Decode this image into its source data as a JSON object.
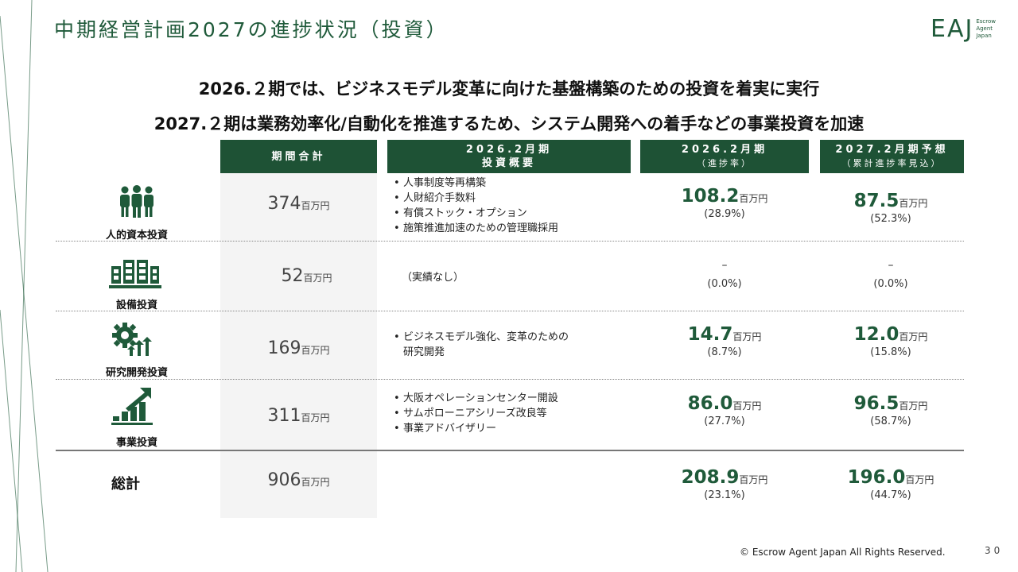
{
  "title": "中期経営計画2027の進捗状況（投資）",
  "logo": {
    "main": "EAJ",
    "sub1": "Escrow",
    "sub2": "Agent",
    "sub3": "Japan"
  },
  "headline1": "2026.２期では、ビジネスモデル変革に向けた基盤構築のための投資を着実に実行",
  "headline2": "2027.２期は業務効率化/自動化を推進するため、システム開発への着手などの事業投資を加速",
  "columns": {
    "total": "期間合計",
    "overview_1": "2026.2月期",
    "overview_2": "投資概要",
    "fy26_1": "2026.2月期",
    "fy26_2": "（進捗率）",
    "fy27_1": "2027.2月期予想",
    "fy27_2": "（累計進捗率見込）"
  },
  "unit": "百万円",
  "rows": [
    {
      "label": "人的資本投資",
      "icon": "people-icon",
      "total": "374",
      "bullets": [
        "人事制度等再構築",
        "人財紹介手数料",
        "有償ストック・オプション",
        "施策推進加速のための管理職採用"
      ],
      "fy26": "108.2",
      "fy26_pct": "(28.9%)",
      "fy27": "87.5",
      "fy27_pct": "(52.3%)"
    },
    {
      "label": "設備投資",
      "icon": "building-icon",
      "total": "52",
      "note": "（実績なし）",
      "fy26": "–",
      "fy26_pct": "(0.0%)",
      "fy27": "–",
      "fy27_pct": "(0.0%)"
    },
    {
      "label": "研究開発投資",
      "icon": "gear-arrows-icon",
      "total": "169",
      "bullet_line1": "ビジネスモデル強化、変革のための",
      "bullet_line2": "研究開発",
      "fy26": "14.7",
      "fy26_pct": "(8.7%)",
      "fy27": "12.0",
      "fy27_pct": "(15.8%)"
    },
    {
      "label": "事業投資",
      "icon": "growth-chart-icon",
      "total": "311",
      "bullets": [
        "大阪オペレーションセンター開設",
        "サムポローニアシリーズ改良等",
        "事業アドバイザリー"
      ],
      "fy26": "86.0",
      "fy26_pct": "(27.7%)",
      "fy27": "96.5",
      "fy27_pct": "(58.7%)"
    }
  ],
  "grand_total": {
    "label": "総計",
    "total": "906",
    "fy26": "208.9",
    "fy26_pct": "(23.1%)",
    "fy27": "196.0",
    "fy27_pct": "(44.7%)"
  },
  "footer": "© Escrow Agent Japan All Rights Reserved.",
  "page_number": "30",
  "colors": {
    "brand_green": "#1e5235",
    "gray_cell": "#f4f4f4"
  }
}
